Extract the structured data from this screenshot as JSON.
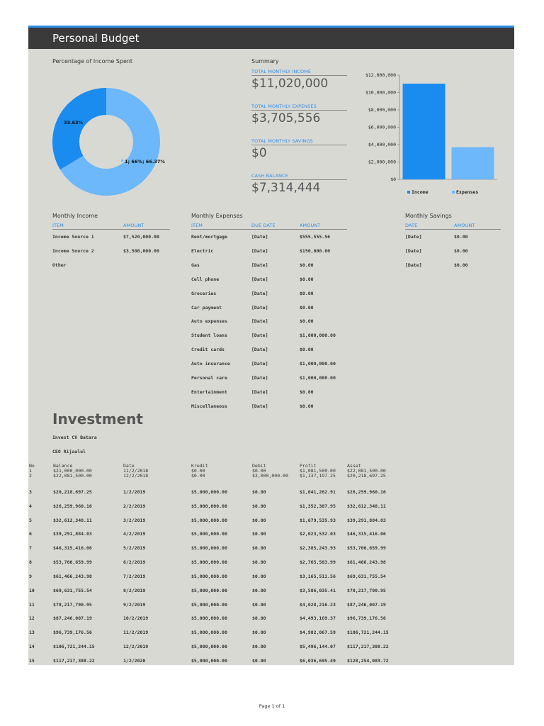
{
  "title": "Personal Budget",
  "donut": {
    "heading": "Percentage of Income Spent",
    "label_small": "33.63%",
    "label_large": "1; 66%; 66.37%",
    "colors": {
      "spent": "#1a8cf0",
      "remaining": "#6cb8fa"
    }
  },
  "chart_data": [
    {
      "type": "pie",
      "categories": [
        "Spent",
        "Remaining"
      ],
      "values": [
        33.63,
        66.37
      ],
      "labels": [
        "33.63%",
        "1; 66%; 66.37%"
      ]
    },
    {
      "type": "bar",
      "categories": [
        "Income",
        "Expenses"
      ],
      "series": [
        {
          "name": "",
          "values": [
            11020000,
            3705556
          ]
        }
      ],
      "ylim": [
        0,
        12000000
      ],
      "ticks": [
        "$0",
        "$2,000,000",
        "$4,000,000",
        "$6,000,000",
        "$8,000,000",
        "$10,000,000",
        "$12,000,000"
      ],
      "legend": [
        "Income",
        "Expenses"
      ],
      "legend_position": "bottom",
      "colors": [
        "#1a8cf0",
        "#6cb8fa"
      ]
    }
  ],
  "summary": {
    "heading": "Summary",
    "items": [
      {
        "label": "TOTAL MONTHLY INCOME",
        "value": "$11,020,000"
      },
      {
        "label": "TOTAL MONTHLY EXPENSES",
        "value": "$3,705,556"
      },
      {
        "label": "TOTAL MONTHLY SAVINGS",
        "value": "$0"
      },
      {
        "label": "CASH BALANCE",
        "value": "$7,314,444"
      }
    ]
  },
  "income": {
    "heading": "Monthly Income",
    "columns": [
      "ITEM",
      "AMOUNT"
    ],
    "rows": [
      [
        "Income Source 1",
        "$7,520,000.00"
      ],
      [
        "Income Source 2",
        "$3,500,000.00"
      ],
      [
        "Other",
        ""
      ]
    ]
  },
  "expenses": {
    "heading": "Monthly Expenses",
    "columns": [
      "ITEM",
      "DUE DATE",
      "AMOUNT"
    ],
    "rows": [
      [
        "Rent/mortgage",
        "[Date]",
        "$555,555.56"
      ],
      [
        "Electric",
        "[Date]",
        "$150,000.00"
      ],
      [
        "Gas",
        "[Date]",
        "$0.00"
      ],
      [
        "Cell phone",
        "[Date]",
        "$0.00"
      ],
      [
        "Groceries",
        "[Date]",
        "$0.00"
      ],
      [
        "Car payment",
        "[Date]",
        "$0.00"
      ],
      [
        "Auto expenses",
        "[Date]",
        "$0.00"
      ],
      [
        "Student loans",
        "[Date]",
        "$1,000,000.00"
      ],
      [
        "Credit cards",
        "[Date]",
        "$0.00"
      ],
      [
        "Auto insurance",
        "[Date]",
        "$1,000,000.00"
      ],
      [
        "Personal care",
        "[Date]",
        "$1,000,000.00"
      ],
      [
        "Entertainment",
        "[Date]",
        "$0.00"
      ],
      [
        "Miscellaneous",
        "[Date]",
        "$0.00"
      ]
    ]
  },
  "savings": {
    "heading": "Monthly Savings",
    "columns": [
      "DATE",
      "AMOUNT"
    ],
    "rows": [
      [
        "[Date]",
        "$0.00"
      ],
      [
        "[Date]",
        "$0.00"
      ],
      [
        "[Date]",
        "$0.00"
      ]
    ]
  },
  "investment": {
    "heading": "Investment",
    "line1": "Invest CV Batara",
    "line2": "CEO Rijaalul",
    "columns": [
      "No",
      "Balance",
      "Date",
      "Kredit",
      "Debit",
      "Profit",
      "Asset"
    ],
    "first_rows": [
      [
        "1",
        "$21,000,000.00",
        "11/2/2018",
        "$0.00",
        "$0.00",
        "$1,081,500.00",
        "$22,081,500.00"
      ],
      [
        "2",
        "$22,081,500.00",
        "12/2/2018",
        "$0.00",
        "$3,000,000.00",
        "$1,137,197.25",
        "$20,218,697.25"
      ]
    ],
    "rows": [
      [
        "3",
        "$20,218,697.25",
        "1/2/2019",
        "$5,000,000.00",
        "$0.00",
        "$1,041,262.91",
        "$26,259,960.16"
      ],
      [
        "4",
        "$26,259,960.16",
        "2/2/2019",
        "$5,000,000.00",
        "$0.00",
        "$1,352,387.95",
        "$32,612,348.11"
      ],
      [
        "5",
        "$32,612,348.11",
        "3/2/2019",
        "$5,000,000.00",
        "$0.00",
        "$1,679,535.93",
        "$39,291,884.03"
      ],
      [
        "6",
        "$39,291,884.03",
        "4/2/2019",
        "$5,000,000.00",
        "$0.00",
        "$2,023,532.03",
        "$46,315,416.06"
      ],
      [
        "7",
        "$46,315,416.06",
        "5/2/2019",
        "$5,000,000.00",
        "$0.00",
        "$2,385,243.93",
        "$53,700,659.99"
      ],
      [
        "8",
        "$53,700,659.99",
        "6/2/2019",
        "$5,000,000.00",
        "$0.00",
        "$2,765,583.99",
        "$61,466,243.98"
      ],
      [
        "9",
        "$61,466,243.98",
        "7/2/2019",
        "$5,000,000.00",
        "$0.00",
        "$3,165,511.56",
        "$69,631,755.54"
      ],
      [
        "10",
        "$69,631,755.54",
        "8/2/2019",
        "$5,000,000.00",
        "$0.00",
        "$3,586,035.41",
        "$78,217,790.95"
      ],
      [
        "11",
        "$78,217,790.95",
        "9/2/2019",
        "$5,000,000.00",
        "$0.00",
        "$4,028,216.23",
        "$87,246,007.19"
      ],
      [
        "12",
        "$87,246,007.19",
        "10/2/2019",
        "$5,000,000.00",
        "$0.00",
        "$4,493,169.37",
        "$96,739,176.56"
      ],
      [
        "13",
        "$96,739,176.56",
        "11/2/2019",
        "$5,000,000.00",
        "$0.00",
        "$4,982,067.59",
        "$106,721,244.15"
      ],
      [
        "14",
        "$106,721,244.15",
        "12/2/2019",
        "$5,000,000.00",
        "$0.00",
        "$5,496,144.07",
        "$117,217,388.22"
      ],
      [
        "15",
        "$117,217,388.22",
        "1/2/2020",
        "$5,000,000.00",
        "$0.00",
        "$6,036,695.49",
        "$128,254,083.72"
      ]
    ]
  },
  "footer": "Page 1 of 1"
}
